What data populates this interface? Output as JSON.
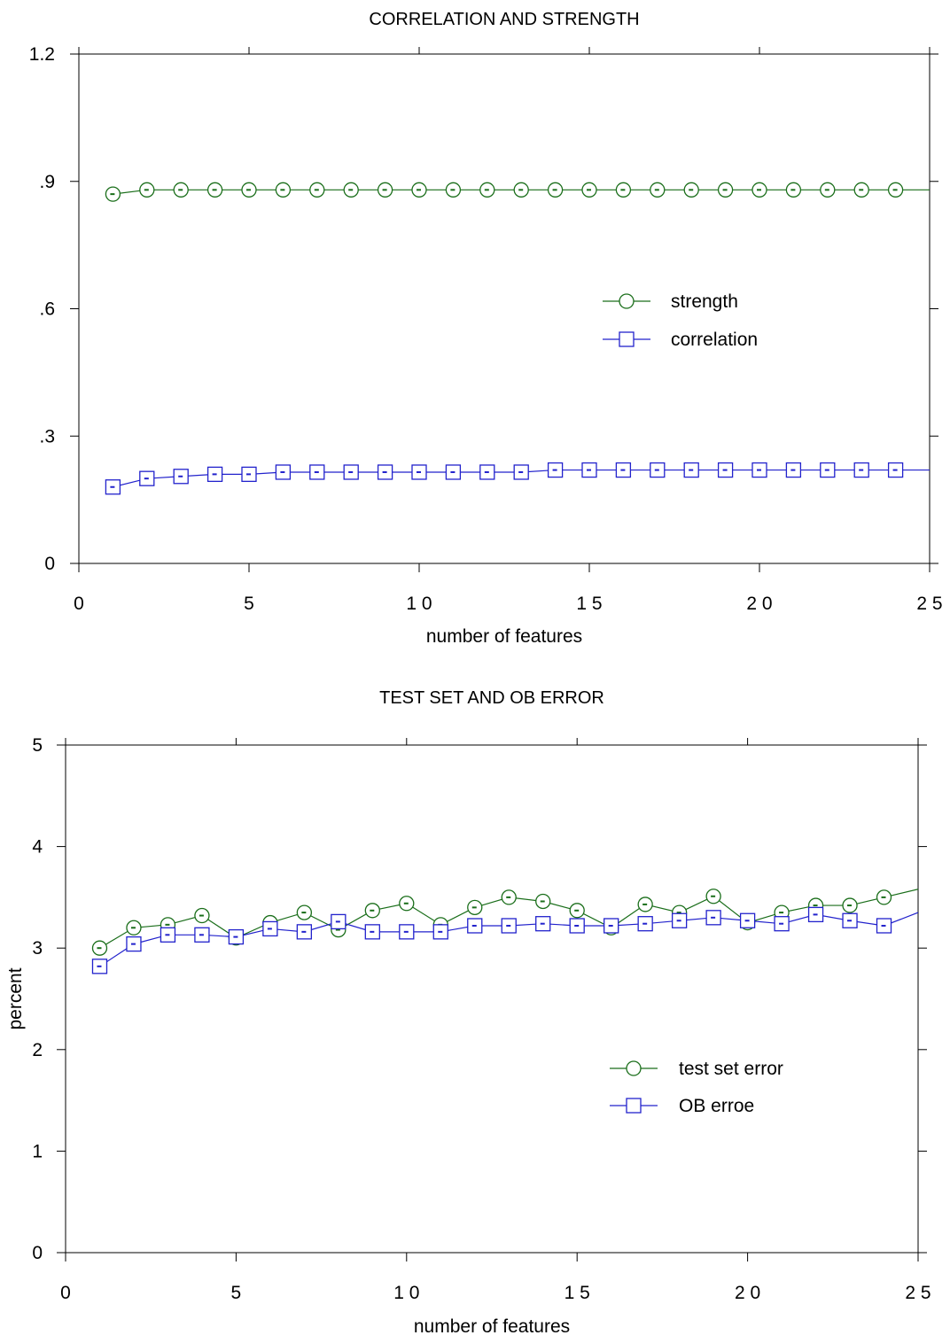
{
  "chart_data": [
    {
      "type": "line",
      "title": "CORRELATION AND STRENGTH",
      "xlabel": "number of features",
      "ylabel": "",
      "xlim": [
        0,
        25
      ],
      "ylim": [
        0,
        1.2
      ],
      "x_ticks": [
        0,
        5,
        10,
        15,
        20,
        25
      ],
      "x_tick_labels": [
        "0",
        "5",
        "1 0",
        "1 5",
        "2 0",
        "2 5"
      ],
      "y_ticks": [
        0,
        0.3,
        0.6,
        0.9,
        1.2
      ],
      "y_tick_labels": [
        "0",
        ".3",
        ".6",
        ".9",
        "1.2"
      ],
      "grid": false,
      "legend_position": "right",
      "x": [
        1,
        2,
        3,
        4,
        5,
        6,
        7,
        8,
        9,
        10,
        11,
        12,
        13,
        14,
        15,
        16,
        17,
        18,
        19,
        20,
        21,
        22,
        23,
        24,
        25
      ],
      "series": [
        {
          "name": "strength",
          "marker": "circle",
          "color": "#1a6e1a",
          "values": [
            0.87,
            0.88,
            0.88,
            0.88,
            0.88,
            0.88,
            0.88,
            0.88,
            0.88,
            0.88,
            0.88,
            0.88,
            0.88,
            0.88,
            0.88,
            0.88,
            0.88,
            0.88,
            0.88,
            0.88,
            0.88,
            0.88,
            0.88,
            0.88,
            0.88
          ]
        },
        {
          "name": "correlation",
          "marker": "square",
          "color": "#2222cc",
          "values": [
            0.18,
            0.2,
            0.205,
            0.21,
            0.21,
            0.215,
            0.215,
            0.215,
            0.215,
            0.215,
            0.215,
            0.215,
            0.215,
            0.22,
            0.22,
            0.22,
            0.22,
            0.22,
            0.22,
            0.22,
            0.22,
            0.22,
            0.22,
            0.22,
            0.22
          ]
        }
      ]
    },
    {
      "type": "line",
      "title": "TEST SET AND OB ERROR",
      "xlabel": "number of features",
      "ylabel": "percent",
      "xlim": [
        0,
        25
      ],
      "ylim": [
        0,
        5
      ],
      "x_ticks": [
        0,
        5,
        10,
        15,
        20,
        25
      ],
      "x_tick_labels": [
        "0",
        "5",
        "1 0",
        "1 5",
        "2 0",
        "2 5"
      ],
      "y_ticks": [
        0,
        1,
        2,
        3,
        4,
        5
      ],
      "y_tick_labels": [
        "0",
        "1",
        "2",
        "3",
        "4",
        "5"
      ],
      "grid": false,
      "legend_position": "right",
      "x": [
        1,
        2,
        3,
        4,
        5,
        6,
        7,
        8,
        9,
        10,
        11,
        12,
        13,
        14,
        15,
        16,
        17,
        18,
        19,
        20,
        21,
        22,
        23,
        24,
        25
      ],
      "series": [
        {
          "name": "test set error",
          "marker": "circle",
          "color": "#1a6e1a",
          "values": [
            3.0,
            3.2,
            3.23,
            3.32,
            3.1,
            3.25,
            3.35,
            3.18,
            3.37,
            3.44,
            3.23,
            3.4,
            3.5,
            3.46,
            3.37,
            3.2,
            3.43,
            3.35,
            3.51,
            3.25,
            3.35,
            3.42,
            3.42,
            3.5,
            3.58
          ]
        },
        {
          "name": "OB erroe",
          "marker": "square",
          "color": "#2222cc",
          "values": [
            2.82,
            3.04,
            3.13,
            3.13,
            3.11,
            3.19,
            3.16,
            3.26,
            3.16,
            3.16,
            3.16,
            3.22,
            3.22,
            3.24,
            3.22,
            3.22,
            3.24,
            3.27,
            3.3,
            3.27,
            3.24,
            3.33,
            3.27,
            3.22,
            3.35
          ]
        }
      ]
    }
  ]
}
